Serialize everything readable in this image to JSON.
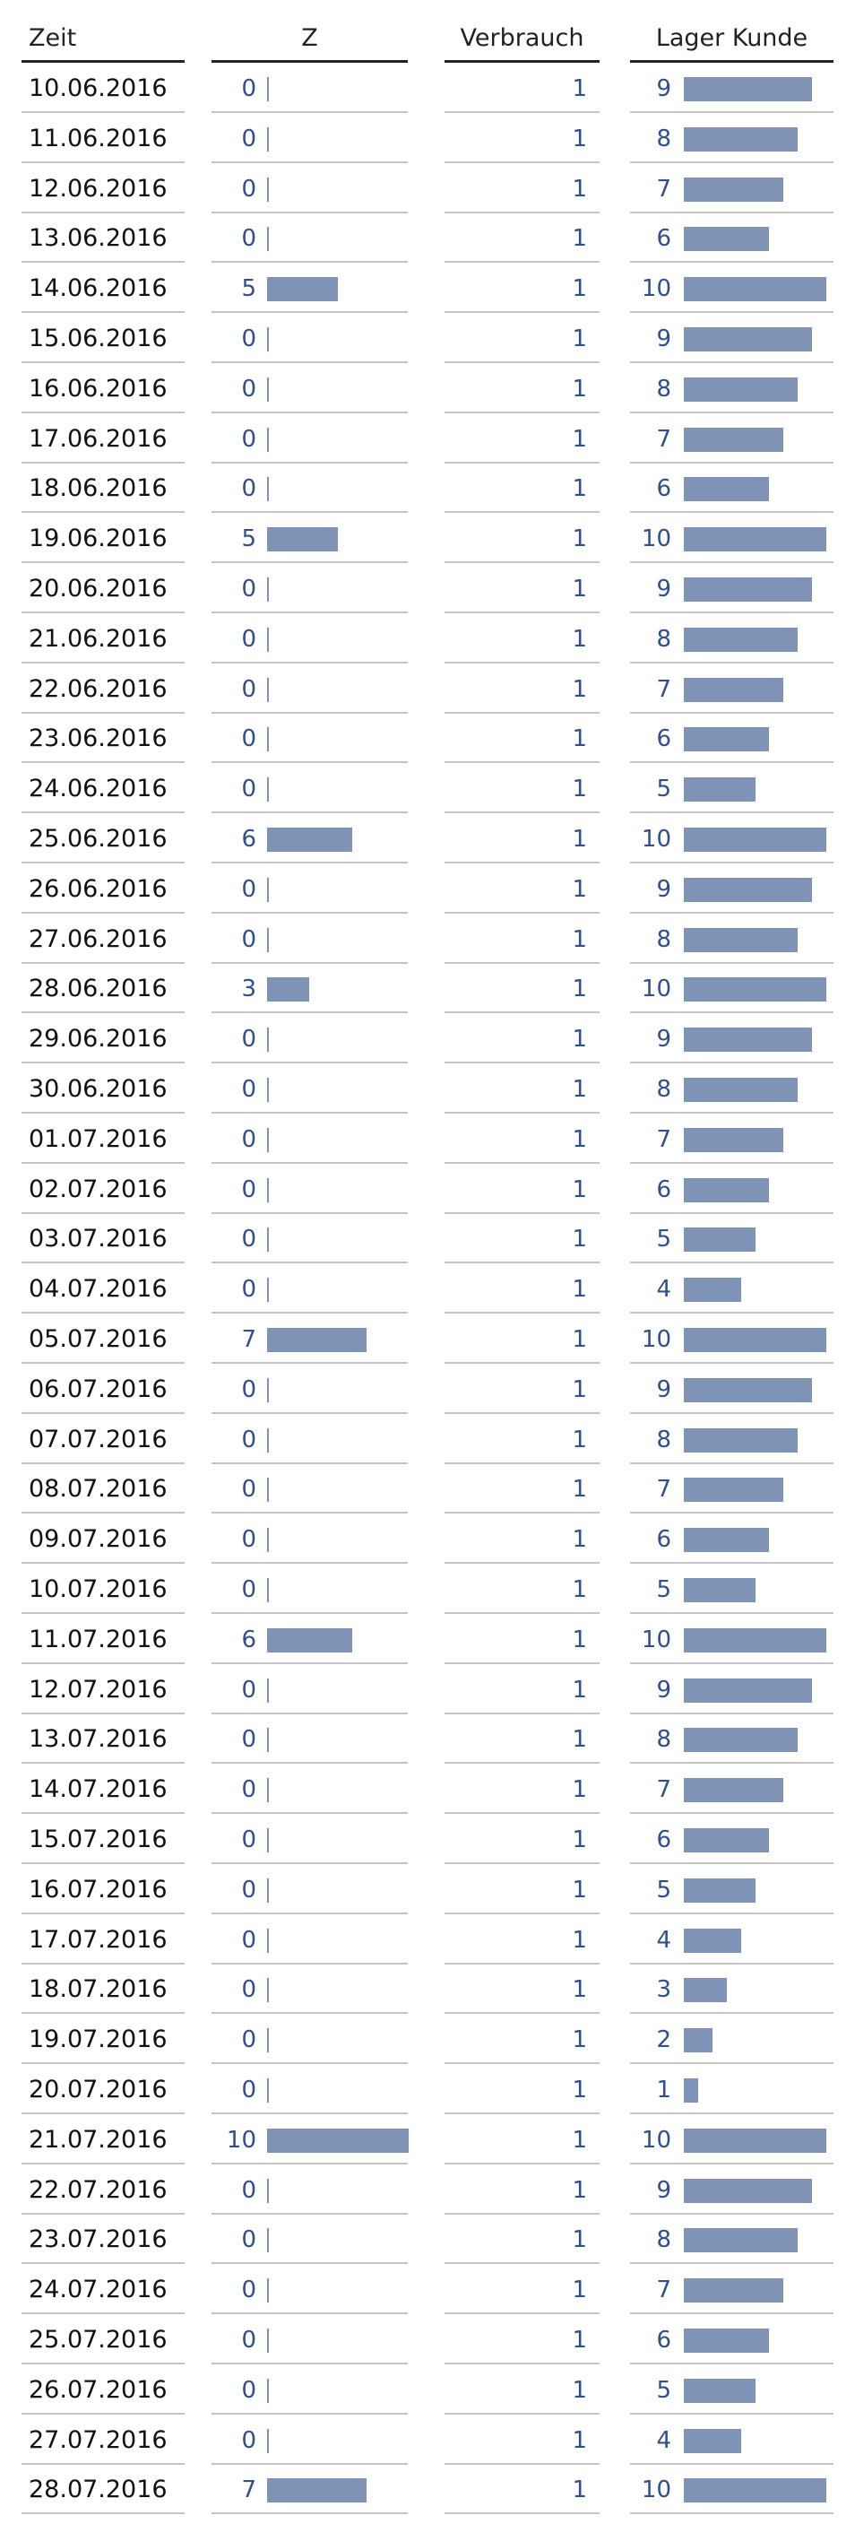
{
  "chart_data": {
    "type": "table",
    "columns": [
      "Zeit",
      "Z",
      "Verbrauch",
      "Lager Kunde"
    ],
    "bar_max": 10,
    "colors": {
      "bar": "#7f93b6",
      "number": "#2f4f8f",
      "row_line": "#c4c4c4",
      "header_line": "#222222"
    },
    "rows": [
      {
        "zeit": "10.06.2016",
        "z": 0,
        "verbrauch": 1,
        "lager": 9
      },
      {
        "zeit": "11.06.2016",
        "z": 0,
        "verbrauch": 1,
        "lager": 8
      },
      {
        "zeit": "12.06.2016",
        "z": 0,
        "verbrauch": 1,
        "lager": 7
      },
      {
        "zeit": "13.06.2016",
        "z": 0,
        "verbrauch": 1,
        "lager": 6
      },
      {
        "zeit": "14.06.2016",
        "z": 5,
        "verbrauch": 1,
        "lager": 10
      },
      {
        "zeit": "15.06.2016",
        "z": 0,
        "verbrauch": 1,
        "lager": 9
      },
      {
        "zeit": "16.06.2016",
        "z": 0,
        "verbrauch": 1,
        "lager": 8
      },
      {
        "zeit": "17.06.2016",
        "z": 0,
        "verbrauch": 1,
        "lager": 7
      },
      {
        "zeit": "18.06.2016",
        "z": 0,
        "verbrauch": 1,
        "lager": 6
      },
      {
        "zeit": "19.06.2016",
        "z": 5,
        "verbrauch": 1,
        "lager": 10
      },
      {
        "zeit": "20.06.2016",
        "z": 0,
        "verbrauch": 1,
        "lager": 9
      },
      {
        "zeit": "21.06.2016",
        "z": 0,
        "verbrauch": 1,
        "lager": 8
      },
      {
        "zeit": "22.06.2016",
        "z": 0,
        "verbrauch": 1,
        "lager": 7
      },
      {
        "zeit": "23.06.2016",
        "z": 0,
        "verbrauch": 1,
        "lager": 6
      },
      {
        "zeit": "24.06.2016",
        "z": 0,
        "verbrauch": 1,
        "lager": 5
      },
      {
        "zeit": "25.06.2016",
        "z": 6,
        "verbrauch": 1,
        "lager": 10
      },
      {
        "zeit": "26.06.2016",
        "z": 0,
        "verbrauch": 1,
        "lager": 9
      },
      {
        "zeit": "27.06.2016",
        "z": 0,
        "verbrauch": 1,
        "lager": 8
      },
      {
        "zeit": "28.06.2016",
        "z": 3,
        "verbrauch": 1,
        "lager": 10
      },
      {
        "zeit": "29.06.2016",
        "z": 0,
        "verbrauch": 1,
        "lager": 9
      },
      {
        "zeit": "30.06.2016",
        "z": 0,
        "verbrauch": 1,
        "lager": 8
      },
      {
        "zeit": "01.07.2016",
        "z": 0,
        "verbrauch": 1,
        "lager": 7
      },
      {
        "zeit": "02.07.2016",
        "z": 0,
        "verbrauch": 1,
        "lager": 6
      },
      {
        "zeit": "03.07.2016",
        "z": 0,
        "verbrauch": 1,
        "lager": 5
      },
      {
        "zeit": "04.07.2016",
        "z": 0,
        "verbrauch": 1,
        "lager": 4
      },
      {
        "zeit": "05.07.2016",
        "z": 7,
        "verbrauch": 1,
        "lager": 10
      },
      {
        "zeit": "06.07.2016",
        "z": 0,
        "verbrauch": 1,
        "lager": 9
      },
      {
        "zeit": "07.07.2016",
        "z": 0,
        "verbrauch": 1,
        "lager": 8
      },
      {
        "zeit": "08.07.2016",
        "z": 0,
        "verbrauch": 1,
        "lager": 7
      },
      {
        "zeit": "09.07.2016",
        "z": 0,
        "verbrauch": 1,
        "lager": 6
      },
      {
        "zeit": "10.07.2016",
        "z": 0,
        "verbrauch": 1,
        "lager": 5
      },
      {
        "zeit": "11.07.2016",
        "z": 6,
        "verbrauch": 1,
        "lager": 10
      },
      {
        "zeit": "12.07.2016",
        "z": 0,
        "verbrauch": 1,
        "lager": 9
      },
      {
        "zeit": "13.07.2016",
        "z": 0,
        "verbrauch": 1,
        "lager": 8
      },
      {
        "zeit": "14.07.2016",
        "z": 0,
        "verbrauch": 1,
        "lager": 7
      },
      {
        "zeit": "15.07.2016",
        "z": 0,
        "verbrauch": 1,
        "lager": 6
      },
      {
        "zeit": "16.07.2016",
        "z": 0,
        "verbrauch": 1,
        "lager": 5
      },
      {
        "zeit": "17.07.2016",
        "z": 0,
        "verbrauch": 1,
        "lager": 4
      },
      {
        "zeit": "18.07.2016",
        "z": 0,
        "verbrauch": 1,
        "lager": 3
      },
      {
        "zeit": "19.07.2016",
        "z": 0,
        "verbrauch": 1,
        "lager": 2
      },
      {
        "zeit": "20.07.2016",
        "z": 0,
        "verbrauch": 1,
        "lager": 1
      },
      {
        "zeit": "21.07.2016",
        "z": 10,
        "verbrauch": 1,
        "lager": 10
      },
      {
        "zeit": "22.07.2016",
        "z": 0,
        "verbrauch": 1,
        "lager": 9
      },
      {
        "zeit": "23.07.2016",
        "z": 0,
        "verbrauch": 1,
        "lager": 8
      },
      {
        "zeit": "24.07.2016",
        "z": 0,
        "verbrauch": 1,
        "lager": 7
      },
      {
        "zeit": "25.07.2016",
        "z": 0,
        "verbrauch": 1,
        "lager": 6
      },
      {
        "zeit": "26.07.2016",
        "z": 0,
        "verbrauch": 1,
        "lager": 5
      },
      {
        "zeit": "27.07.2016",
        "z": 0,
        "verbrauch": 1,
        "lager": 4
      },
      {
        "zeit": "28.07.2016",
        "z": 7,
        "verbrauch": 1,
        "lager": 10
      }
    ]
  }
}
